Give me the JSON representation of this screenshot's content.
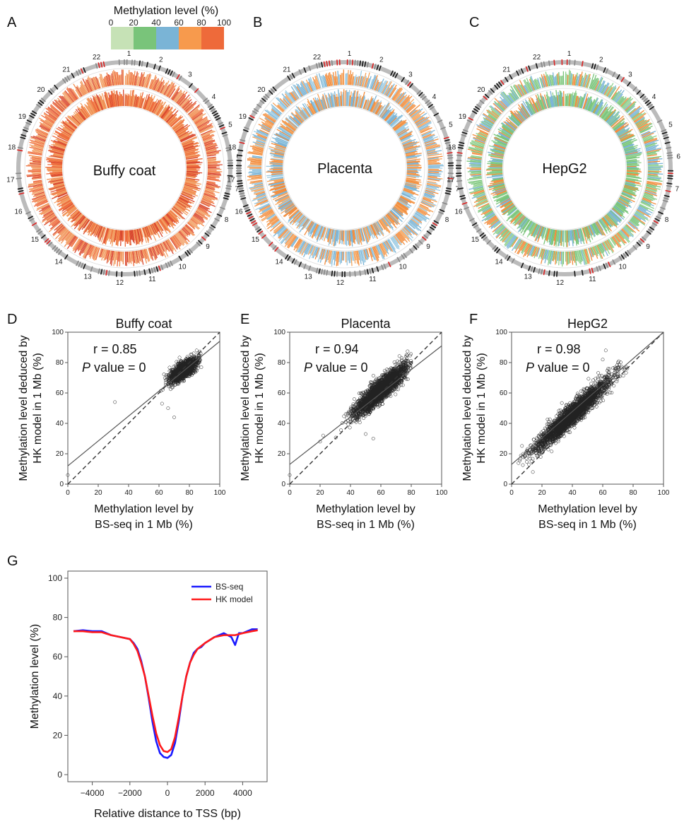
{
  "panel_letters": [
    "A",
    "B",
    "C",
    "D",
    "E",
    "F",
    "G"
  ],
  "legend": {
    "title": "Methylation level (%)",
    "ticks": [
      "0",
      "20",
      "40",
      "60",
      "80",
      "100"
    ],
    "colors": [
      "#c6e2b6",
      "#79c47a",
      "#7ab4d6",
      "#f79a4d",
      "#ee6a3a"
    ]
  },
  "circos": [
    {
      "label": "Buffy coat",
      "palette": [
        "#ee6a3a",
        "#f08c4e",
        "#d9482e",
        "#f2a066"
      ]
    },
    {
      "label": "Placenta",
      "palette": [
        "#f28c3c",
        "#f5a45c",
        "#7ab4d6",
        "#9ccbe3"
      ]
    },
    {
      "label": "HepG2",
      "palette": [
        "#8ed08c",
        "#79c47a",
        "#7ab4d6",
        "#f28c3c"
      ]
    }
  ],
  "chromosomes": [
    "1",
    "2",
    "3",
    "4",
    "5",
    "6",
    "7",
    "8",
    "9",
    "10",
    "11",
    "12",
    "13",
    "14",
    "15",
    "16",
    "17",
    "18",
    "19",
    "20",
    "21",
    "22"
  ],
  "chart_data": [
    {
      "type": "scatter",
      "title": "Buffy coat",
      "r_text": "r = 0.85",
      "p_label": "P",
      "p_rest": " value = 0",
      "xlabel": [
        "Methylation level by",
        "BS-seq in 1 Mb (%)"
      ],
      "ylabel": [
        "Methylation level deduced by",
        "HK model in 1 Mb (%)"
      ],
      "xlim": [
        0,
        100
      ],
      "ylim": [
        0,
        100
      ],
      "xticks": [
        "0",
        "20",
        "40",
        "60",
        "80",
        "100"
      ],
      "yticks": [
        "0",
        "20",
        "40",
        "60",
        "80",
        "100"
      ],
      "cloud": {
        "x_range": [
          62,
          86
        ],
        "center": [
          76,
          75
        ],
        "slope": 0.62
      },
      "outliers": [
        [
          0,
          6
        ],
        [
          31,
          54
        ],
        [
          62,
          53
        ],
        [
          66,
          50
        ],
        [
          70,
          44
        ]
      ],
      "fit_line": {
        "intercept": 12,
        "slope": 0.82
      }
    },
    {
      "type": "scatter",
      "title": "Placenta",
      "r_text": "r = 0.94",
      "p_label": "P",
      "p_rest": " value = 0",
      "xlabel": [
        "Methylation level by",
        "BS-seq in 1 Mb (%)"
      ],
      "ylabel": [
        "Methylation level deduced by",
        "HK model in 1 Mb (%)"
      ],
      "xlim": [
        0,
        100
      ],
      "ylim": [
        0,
        100
      ],
      "xticks": [
        "0",
        "20",
        "40",
        "60",
        "80",
        "100"
      ],
      "yticks": [
        "0",
        "20",
        "40",
        "60",
        "80",
        "100"
      ],
      "cloud": {
        "x_range": [
          30,
          78
        ],
        "center": [
          60,
          62
        ],
        "slope": 0.85
      },
      "outliers": [
        [
          0,
          6
        ],
        [
          20,
          28
        ],
        [
          22,
          32
        ],
        [
          55,
          30
        ],
        [
          50,
          33
        ]
      ],
      "fit_line": {
        "intercept": 13,
        "slope": 0.78
      }
    },
    {
      "type": "scatter",
      "title": "HepG2",
      "r_text": "r = 0.98",
      "p_label": "P",
      "p_rest": " value = 0",
      "xlabel": [
        "Methylation level by",
        "BS-seq in 1 Mb (%)"
      ],
      "ylabel": [
        "Methylation level deduced by",
        "HK model in 1 Mb (%)"
      ],
      "xlim": [
        0,
        100
      ],
      "ylim": [
        0,
        100
      ],
      "xticks": [
        "0",
        "20",
        "40",
        "60",
        "80",
        "100"
      ],
      "yticks": [
        "0",
        "20",
        "40",
        "60",
        "80",
        "100"
      ],
      "cloud": {
        "x_range": [
          8,
          75
        ],
        "center": [
          40,
          46
        ],
        "slope": 0.9
      },
      "outliers": [
        [
          14,
          8
        ],
        [
          60,
          82
        ],
        [
          62,
          88
        ],
        [
          10,
          22
        ],
        [
          70,
          80
        ]
      ],
      "fit_line": {
        "intercept": 13,
        "slope": 0.87
      }
    },
    {
      "type": "line",
      "xlabel": "Relative distance to TSS (bp)",
      "ylabel": "Methylation level (%)",
      "xlim": [
        -5000,
        5000
      ],
      "ylim": [
        0,
        100
      ],
      "xticks": [
        "-4000",
        "-2000",
        "0",
        "2000",
        "4000"
      ],
      "yticks": [
        "0",
        "20",
        "40",
        "60",
        "80",
        "100"
      ],
      "x": [
        -5000,
        -4500,
        -4000,
        -3500,
        -3000,
        -2500,
        -2000,
        -1800,
        -1600,
        -1400,
        -1200,
        -1000,
        -800,
        -600,
        -400,
        -200,
        0,
        200,
        400,
        600,
        800,
        1000,
        1200,
        1400,
        1600,
        1800,
        2000,
        2500,
        3000,
        3400,
        3600,
        3800,
        4000,
        4500,
        4800
      ],
      "series": [
        {
          "name": "BS-seq",
          "color": "#1a1aff",
          "values": [
            73,
            73.5,
            73,
            73,
            71,
            70,
            69,
            67,
            64,
            58,
            50,
            39,
            27,
            17,
            11,
            9,
            8.5,
            10,
            16,
            27,
            40,
            50,
            57,
            62,
            64,
            65,
            67,
            70,
            72,
            70,
            66,
            72,
            72,
            74,
            74
          ]
        },
        {
          "name": "HK model",
          "color": "#ff1a1a",
          "values": [
            73,
            73,
            72.5,
            72.5,
            71,
            70,
            69,
            66.5,
            63,
            57,
            50,
            40,
            30,
            21,
            15,
            12,
            11.5,
            13,
            19,
            29,
            40,
            50,
            57,
            61,
            64,
            65.5,
            67,
            70,
            71,
            71,
            71,
            71.5,
            72,
            73,
            73.5
          ]
        }
      ]
    }
  ]
}
